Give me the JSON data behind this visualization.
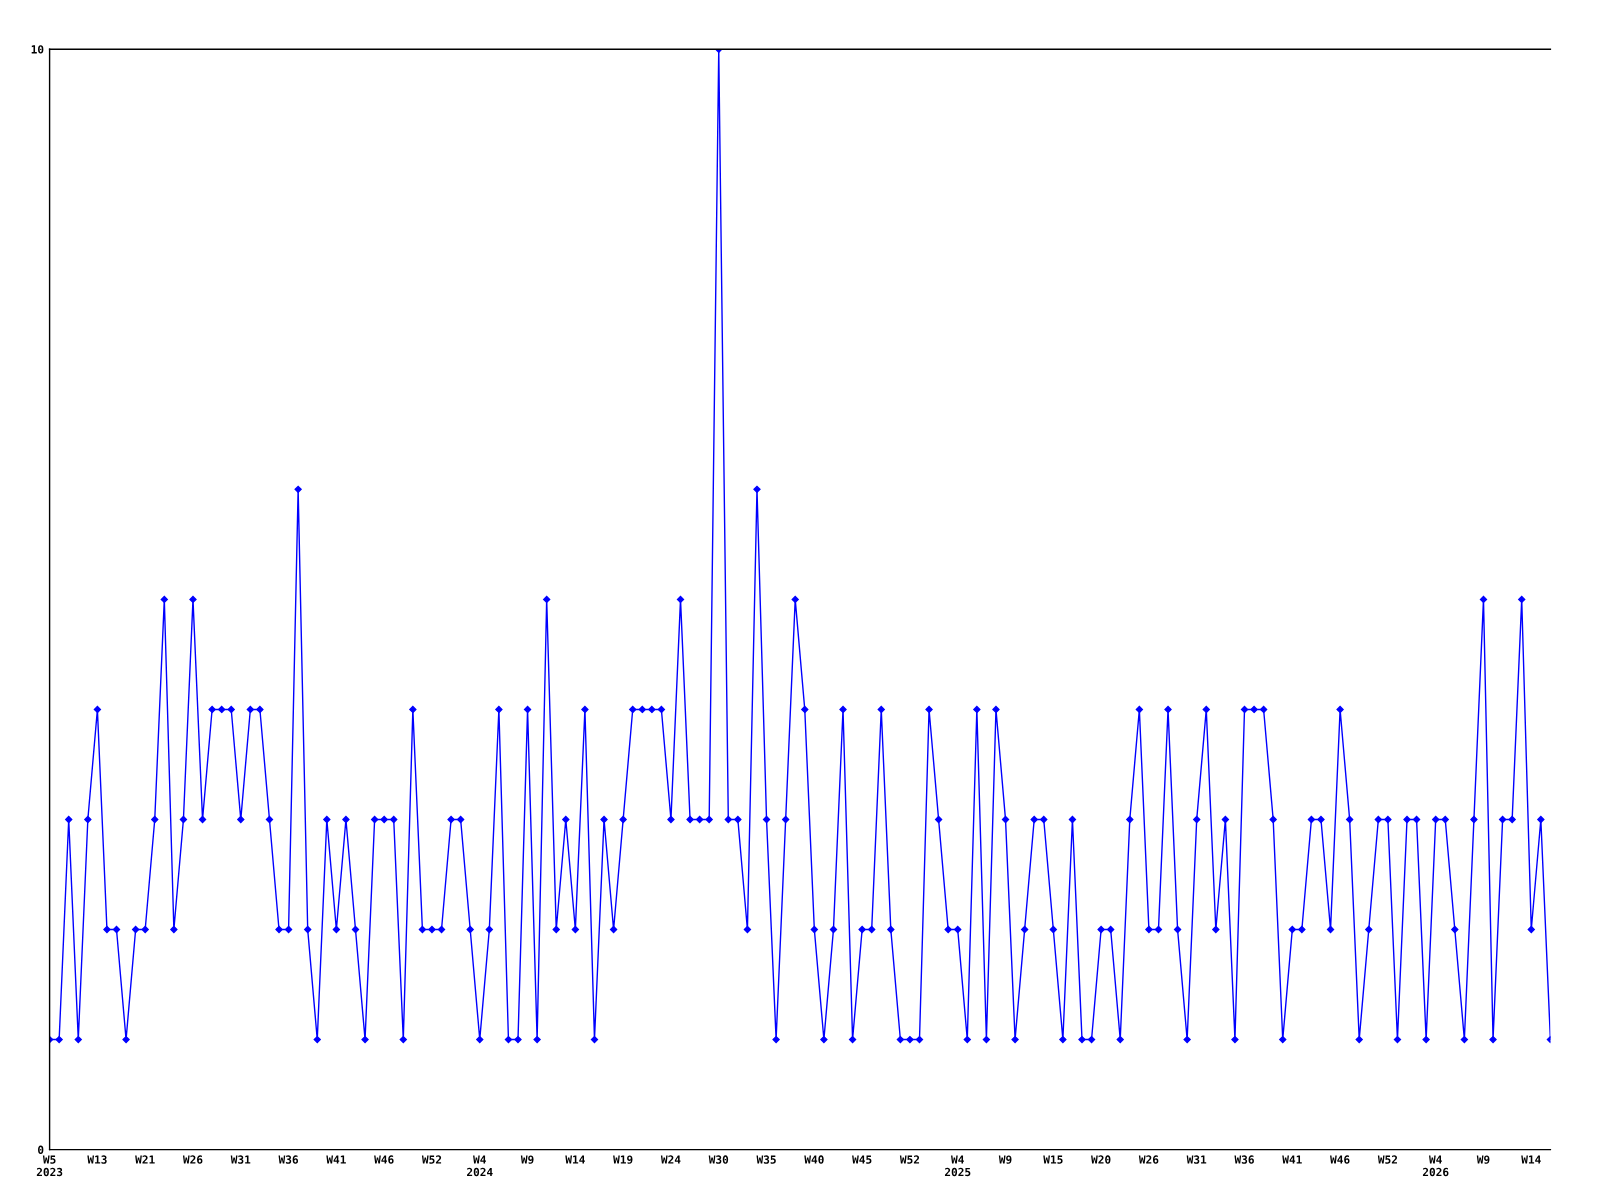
{
  "chart_data": {
    "type": "line",
    "categories": [
      "W5\n2023",
      null,
      null,
      null,
      null,
      "W13",
      null,
      null,
      null,
      null,
      "W21",
      null,
      null,
      null,
      null,
      "W26",
      null,
      null,
      null,
      null,
      "W31",
      null,
      null,
      null,
      null,
      "W36",
      null,
      null,
      null,
      null,
      "W41",
      null,
      null,
      null,
      null,
      "W46",
      null,
      null,
      null,
      null,
      "W52",
      null,
      null,
      null,
      null,
      "W4\n2024",
      null,
      null,
      null,
      null,
      "W9",
      null,
      null,
      null,
      null,
      "W14",
      null,
      null,
      null,
      null,
      "W19",
      null,
      null,
      null,
      null,
      "W24",
      null,
      null,
      null,
      null,
      "W30",
      null,
      null,
      null,
      null,
      "W35",
      null,
      null,
      null,
      null,
      "W40",
      null,
      null,
      null,
      null,
      "W45",
      null,
      null,
      null,
      null,
      "W52",
      null,
      null,
      null,
      null,
      "W4\n2025",
      null,
      null,
      null,
      null,
      "W9",
      null,
      null,
      null,
      null,
      "W15",
      null,
      null,
      null,
      null,
      "W20",
      null,
      null,
      null,
      null,
      "W26",
      null,
      null,
      null,
      null,
      "W31",
      null,
      null,
      null,
      null,
      "W36",
      null,
      null,
      null,
      null,
      "W41",
      null,
      null,
      null,
      null,
      "W46",
      null,
      null,
      null,
      null,
      "W52",
      null,
      null,
      null,
      null,
      "W4\n2026",
      null,
      null,
      null,
      null,
      "W9",
      null,
      null,
      null,
      null,
      "W14",
      null,
      null
    ],
    "series": [
      {
        "color": "#0000ff",
        "values": [
          1,
          1,
          3,
          1,
          3,
          4,
          2,
          2,
          1,
          2,
          2,
          3,
          5,
          2,
          3,
          5,
          3,
          4,
          4,
          4,
          3,
          4,
          4,
          3,
          2,
          2,
          6,
          2,
          1,
          3,
          2,
          3,
          2,
          1,
          3,
          3,
          3,
          1,
          4,
          2,
          2,
          2,
          3,
          3,
          2,
          1,
          2,
          4,
          1,
          1,
          4,
          1,
          5,
          2,
          3,
          2,
          4,
          1,
          3,
          2,
          3,
          4,
          4,
          4,
          4,
          3,
          5,
          3,
          3,
          3,
          10,
          3,
          3,
          2,
          6,
          3,
          1,
          3,
          5,
          4,
          2,
          1,
          2,
          4,
          1,
          2,
          2,
          4,
          2,
          1,
          1,
          1,
          4,
          3,
          2,
          2,
          1,
          4,
          1,
          4,
          3,
          1,
          2,
          3,
          3,
          2,
          1,
          3,
          1,
          1,
          2,
          2,
          1,
          3,
          4,
          2,
          2,
          4,
          2,
          1,
          3,
          4,
          2,
          3,
          1,
          4,
          4,
          4,
          3,
          1,
          2,
          2,
          3,
          3,
          2,
          4,
          3,
          1,
          2,
          3,
          3,
          1,
          3,
          3,
          1,
          3,
          3,
          2,
          1,
          3,
          5,
          1,
          3,
          3,
          5,
          2,
          3,
          1
        ]
      }
    ],
    "ylim": [
      0,
      10
    ],
    "yticks": [
      0,
      10
    ],
    "grid": false,
    "marker": "diamond",
    "line_style": "solid",
    "legend": false
  }
}
